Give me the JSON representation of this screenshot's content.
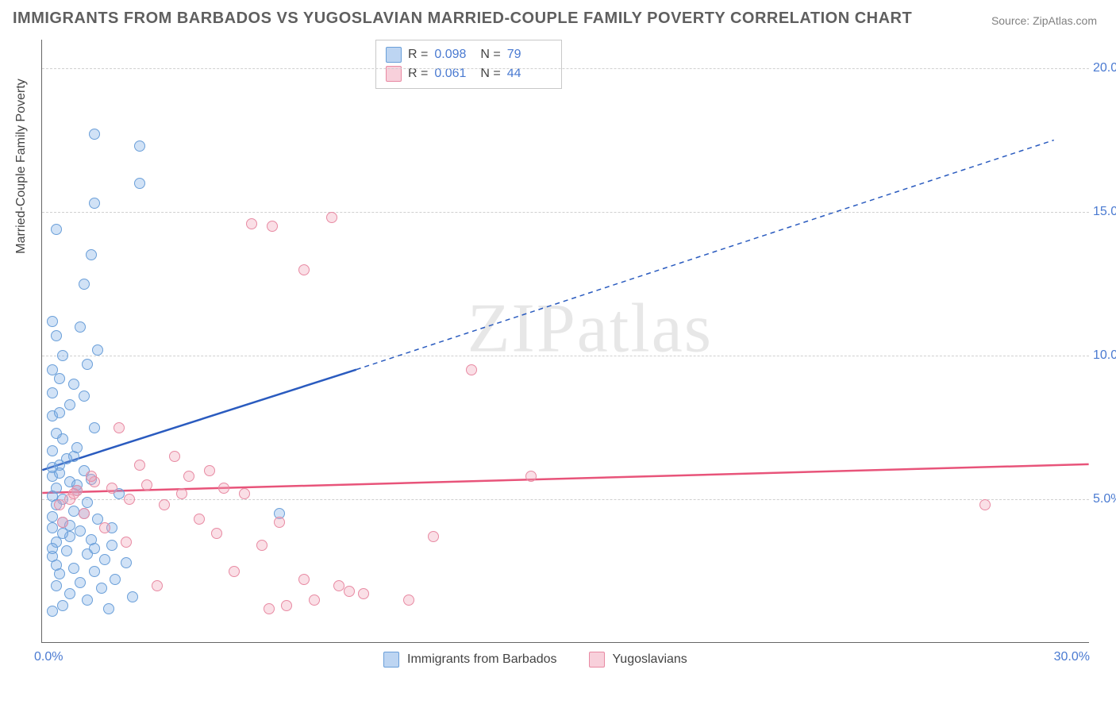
{
  "title": "IMMIGRANTS FROM BARBADOS VS YUGOSLAVIAN MARRIED-COUPLE FAMILY POVERTY CORRELATION CHART",
  "source": "Source: ZipAtlas.com",
  "ylabel": "Married-Couple Family Poverty",
  "watermark": "ZIPatlas",
  "chart": {
    "type": "scatter",
    "xlim": [
      0,
      30
    ],
    "ylim": [
      0,
      21
    ],
    "yticks": [
      5,
      10,
      15,
      20
    ],
    "ytick_labels": [
      "5.0%",
      "10.0%",
      "15.0%",
      "20.0%"
    ],
    "xtick_left": "0.0%",
    "xtick_right": "30.0%",
    "background_color": "#ffffff",
    "grid_color": "#d0d0d0",
    "axis_color": "#666666",
    "marker_size": 14,
    "series": [
      {
        "name": "Immigrants from Barbados",
        "color_fill": "rgba(124,171,229,0.35)",
        "color_stroke": "#6a9fd9",
        "trend_color": "#2a5bbf",
        "r_label": "R =",
        "r_value": "0.098",
        "n_label": "N =",
        "n_value": "79",
        "trend": {
          "x1": 0,
          "y1": 6.0,
          "x2_solid": 9,
          "y2_solid": 9.5,
          "x2_dash": 29,
          "y2_dash": 17.5
        },
        "points": [
          [
            1.5,
            17.7
          ],
          [
            2.8,
            17.3
          ],
          [
            2.8,
            16.0
          ],
          [
            1.5,
            15.3
          ],
          [
            0.4,
            14.4
          ],
          [
            1.4,
            13.5
          ],
          [
            0.3,
            11.2
          ],
          [
            0.4,
            10.7
          ],
          [
            1.6,
            10.2
          ],
          [
            1.3,
            9.7
          ],
          [
            0.5,
            9.2
          ],
          [
            0.3,
            8.7
          ],
          [
            1.2,
            8.6
          ],
          [
            0.8,
            8.3
          ],
          [
            0.3,
            7.9
          ],
          [
            1.5,
            7.5
          ],
          [
            0.6,
            7.1
          ],
          [
            0.3,
            6.7
          ],
          [
            0.9,
            6.5
          ],
          [
            0.5,
            6.2
          ],
          [
            1.2,
            6.0
          ],
          [
            0.3,
            5.8
          ],
          [
            0.8,
            5.6
          ],
          [
            0.4,
            5.4
          ],
          [
            1.0,
            5.3
          ],
          [
            0.3,
            5.1
          ],
          [
            0.6,
            5.0
          ],
          [
            1.3,
            4.9
          ],
          [
            0.4,
            4.8
          ],
          [
            0.9,
            4.6
          ],
          [
            0.3,
            4.4
          ],
          [
            1.6,
            4.3
          ],
          [
            0.6,
            4.2
          ],
          [
            0.3,
            4.0
          ],
          [
            1.1,
            3.9
          ],
          [
            0.8,
            3.7
          ],
          [
            1.4,
            3.6
          ],
          [
            0.4,
            3.5
          ],
          [
            2.0,
            3.4
          ],
          [
            0.7,
            3.2
          ],
          [
            1.3,
            3.1
          ],
          [
            0.3,
            3.0
          ],
          [
            1.8,
            2.9
          ],
          [
            2.4,
            2.8
          ],
          [
            0.9,
            2.6
          ],
          [
            1.5,
            2.5
          ],
          [
            0.5,
            2.4
          ],
          [
            2.1,
            2.2
          ],
          [
            1.1,
            2.1
          ],
          [
            0.4,
            2.0
          ],
          [
            1.7,
            1.9
          ],
          [
            0.8,
            1.7
          ],
          [
            2.6,
            1.6
          ],
          [
            1.3,
            1.5
          ],
          [
            0.6,
            1.3
          ],
          [
            1.9,
            1.2
          ],
          [
            0.3,
            1.1
          ],
          [
            1.0,
            5.5
          ],
          [
            0.5,
            5.9
          ],
          [
            2.2,
            5.2
          ],
          [
            0.7,
            6.4
          ],
          [
            1.4,
            5.7
          ],
          [
            0.4,
            7.3
          ],
          [
            6.8,
            4.5
          ],
          [
            1.1,
            11.0
          ],
          [
            0.6,
            10.0
          ],
          [
            0.3,
            9.5
          ],
          [
            0.9,
            9.0
          ],
          [
            1.2,
            12.5
          ],
          [
            0.5,
            8.0
          ],
          [
            1.0,
            6.8
          ],
          [
            0.3,
            6.1
          ],
          [
            0.8,
            4.1
          ],
          [
            1.5,
            3.3
          ],
          [
            0.4,
            2.7
          ],
          [
            2.0,
            4.0
          ],
          [
            1.2,
            4.5
          ],
          [
            0.6,
            3.8
          ],
          [
            0.3,
            3.3
          ]
        ]
      },
      {
        "name": "Yugoslavians",
        "color_fill": "rgba(241,162,183,0.35)",
        "color_stroke": "#e88aa3",
        "trend_color": "#e8547a",
        "r_label": "R =",
        "r_value": "0.061",
        "n_label": "N =",
        "n_value": "44",
        "trend": {
          "x1": 0,
          "y1": 5.2,
          "x2_solid": 30,
          "y2_solid": 6.2,
          "x2_dash": 30,
          "y2_dash": 6.2
        },
        "points": [
          [
            8.3,
            14.8
          ],
          [
            6.0,
            14.6
          ],
          [
            6.6,
            14.5
          ],
          [
            7.5,
            13.0
          ],
          [
            12.3,
            9.5
          ],
          [
            14.0,
            5.8
          ],
          [
            27.0,
            4.8
          ],
          [
            11.2,
            3.7
          ],
          [
            10.5,
            1.5
          ],
          [
            8.5,
            2.0
          ],
          [
            8.8,
            1.8
          ],
          [
            7.8,
            1.5
          ],
          [
            7.0,
            1.3
          ],
          [
            7.5,
            2.2
          ],
          [
            6.3,
            3.4
          ],
          [
            6.8,
            4.2
          ],
          [
            5.5,
            2.5
          ],
          [
            5.0,
            3.8
          ],
          [
            4.5,
            4.3
          ],
          [
            4.0,
            5.2
          ],
          [
            3.5,
            4.8
          ],
          [
            3.0,
            5.5
          ],
          [
            2.5,
            5.0
          ],
          [
            2.0,
            5.4
          ],
          [
            1.5,
            5.6
          ],
          [
            1.0,
            5.3
          ],
          [
            0.8,
            5.0
          ],
          [
            0.5,
            4.8
          ],
          [
            2.2,
            7.5
          ],
          [
            2.8,
            6.2
          ],
          [
            3.3,
            2.0
          ],
          [
            4.8,
            6.0
          ],
          [
            5.2,
            5.4
          ],
          [
            1.2,
            4.5
          ],
          [
            0.6,
            4.2
          ],
          [
            1.8,
            4.0
          ],
          [
            2.4,
            3.5
          ],
          [
            4.2,
            5.8
          ],
          [
            5.8,
            5.2
          ],
          [
            3.8,
            6.5
          ],
          [
            1.4,
            5.8
          ],
          [
            0.9,
            5.2
          ],
          [
            6.5,
            1.2
          ],
          [
            9.2,
            1.7
          ]
        ]
      }
    ]
  },
  "legend": {
    "rows": [
      {
        "swatch": "blue",
        "r_label": "R =",
        "r_value": "0.098",
        "n_label": "N =",
        "n_value": "79"
      },
      {
        "swatch": "pink",
        "r_label": "R =",
        "r_value": "0.061",
        "n_label": "N =",
        "n_value": "44"
      }
    ]
  },
  "bottom_legend": [
    {
      "swatch": "blue",
      "label": "Immigrants from Barbados"
    },
    {
      "swatch": "pink",
      "label": "Yugoslavians"
    }
  ]
}
